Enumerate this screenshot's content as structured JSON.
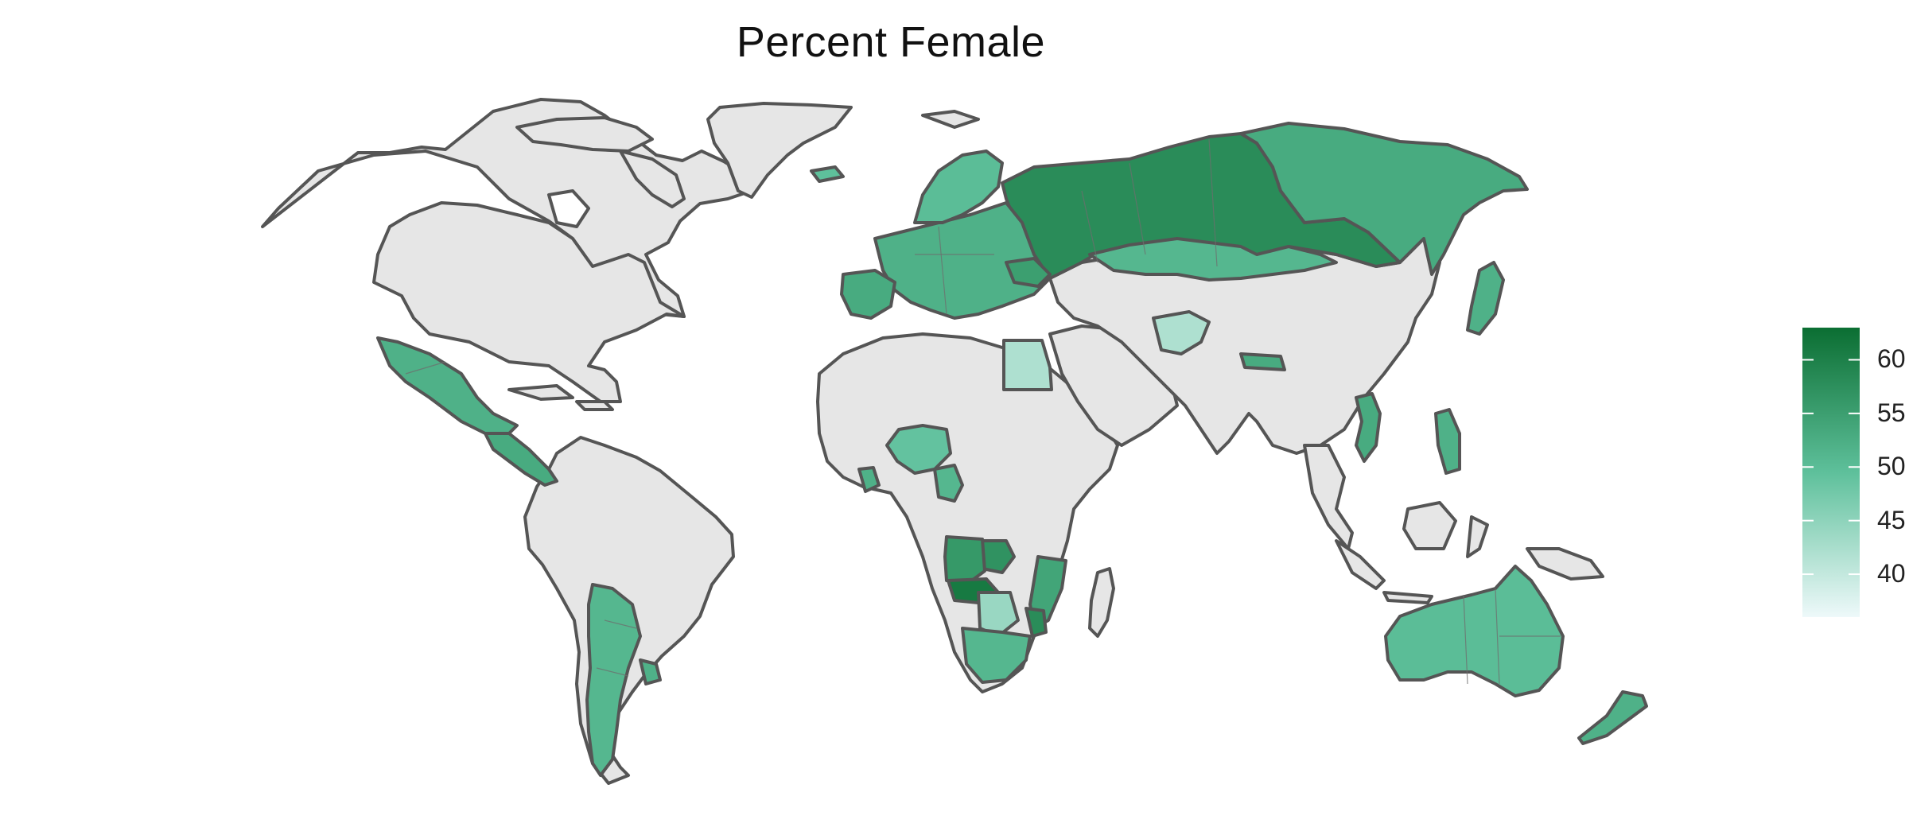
{
  "title": "Percent Female",
  "colors": {
    "no_data": "#e6e6e6",
    "border": "#555555",
    "scale_low": "#eef9fa",
    "scale_mid": "#5ec09b",
    "scale_high": "#0b6e32"
  },
  "legend": {
    "ticks": [
      "60",
      "55",
      "50",
      "45",
      "40"
    ],
    "range": [
      36,
      63
    ]
  },
  "map_regions": {
    "shaded": [
      {
        "name": "Russia (west)",
        "value": 58
      },
      {
        "name": "Russia (east)",
        "value": 53
      },
      {
        "name": "Kazakhstan",
        "value": 51
      },
      {
        "name": "Europe",
        "value": 52
      },
      {
        "name": "Scandinavia",
        "value": 50
      },
      {
        "name": "Iberia",
        "value": 53
      },
      {
        "name": "Ukraine",
        "value": 55
      },
      {
        "name": "Mexico",
        "value": 52
      },
      {
        "name": "Central America",
        "value": 53
      },
      {
        "name": "Argentina",
        "value": 51
      },
      {
        "name": "Uruguay",
        "value": 52
      },
      {
        "name": "Mali",
        "value": 49
      },
      {
        "name": "Liberia",
        "value": 52
      },
      {
        "name": "Cameroon",
        "value": 51
      },
      {
        "name": "Egypt",
        "value": 42
      },
      {
        "name": "Afghanistan",
        "value": 42
      },
      {
        "name": "Zambia",
        "value": 57
      },
      {
        "name": "Angola",
        "value": 56
      },
      {
        "name": "Namibia (north)",
        "value": 61
      },
      {
        "name": "Botswana",
        "value": 44
      },
      {
        "name": "Mozambique",
        "value": 54
      },
      {
        "name": "Malawi",
        "value": 58
      },
      {
        "name": "South Africa",
        "value": 51
      },
      {
        "name": "Australia",
        "value": 50
      },
      {
        "name": "New Zealand",
        "value": 52
      },
      {
        "name": "Japan",
        "value": 52
      },
      {
        "name": "Vietnam",
        "value": 53
      },
      {
        "name": "Philippines",
        "value": 52
      },
      {
        "name": "Nepal",
        "value": 53
      }
    ]
  }
}
